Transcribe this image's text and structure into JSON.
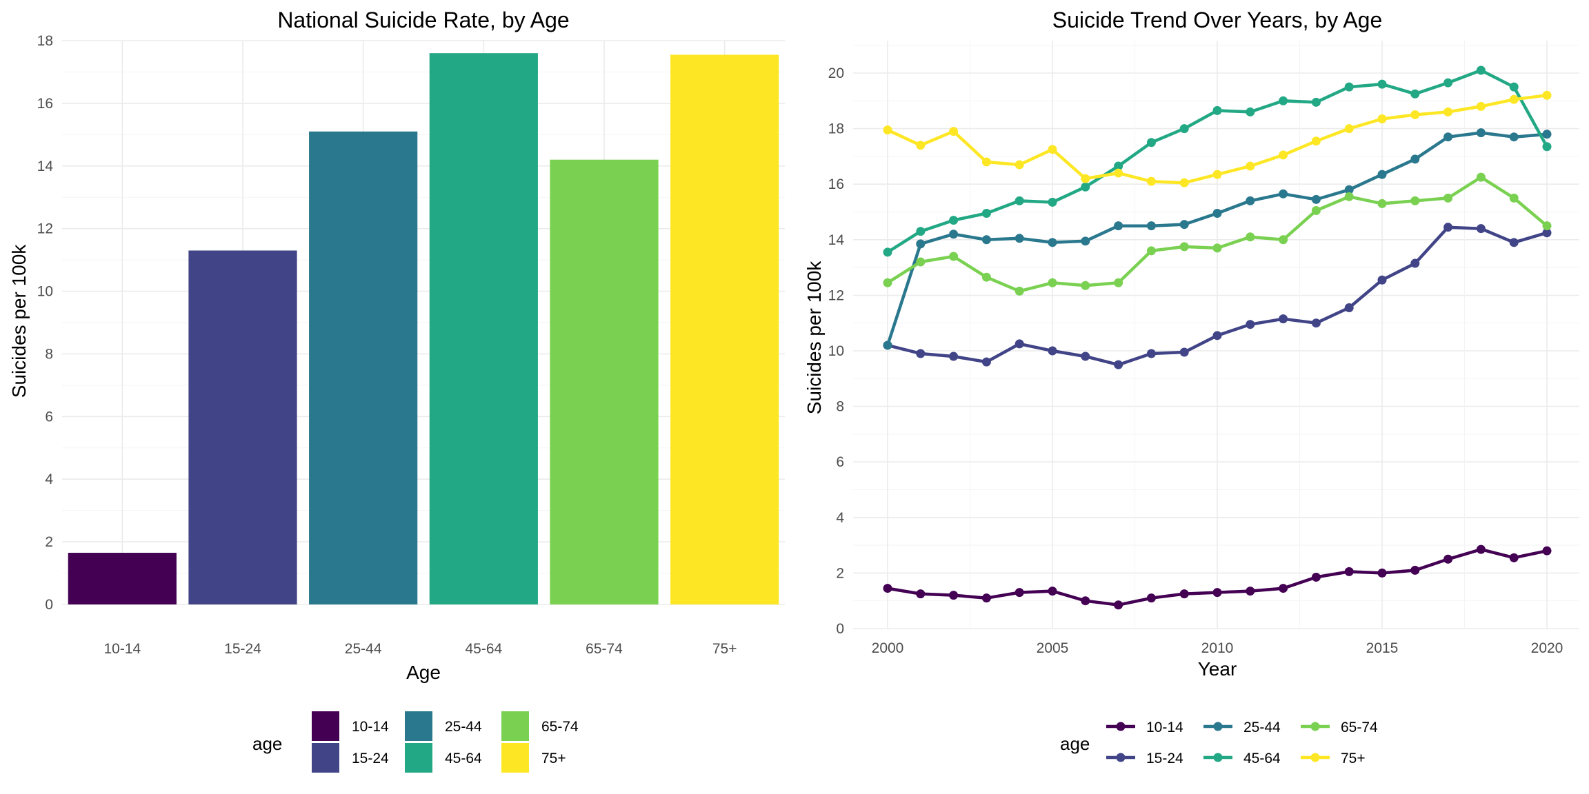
{
  "chart_data": [
    {
      "type": "bar",
      "title": "National Suicide Rate, by Age",
      "xlabel": "Age",
      "ylabel": "Suicides per 100k",
      "categories": [
        "10-14",
        "15-24",
        "25-44",
        "45-64",
        "65-74",
        "75+"
      ],
      "values": [
        1.65,
        11.3,
        15.1,
        17.6,
        14.2,
        17.55
      ],
      "colors": [
        "#440154",
        "#414487",
        "#2a788e",
        "#22a884",
        "#7ad151",
        "#fde725"
      ],
      "ylim": [
        0,
        18
      ],
      "y_ticks": [
        0,
        2,
        4,
        6,
        8,
        10,
        12,
        14,
        16,
        18
      ],
      "grid": true,
      "legend": {
        "title": "age",
        "position": "bottom",
        "entries": [
          "10-14",
          "15-24",
          "25-44",
          "45-64",
          "65-74",
          "75+"
        ]
      }
    },
    {
      "type": "line",
      "title": "Suicide Trend Over Years, by Age",
      "xlabel": "Year",
      "ylabel": "Suicides per 100k",
      "x": [
        2000,
        2001,
        2002,
        2003,
        2004,
        2005,
        2006,
        2007,
        2008,
        2009,
        2010,
        2011,
        2012,
        2013,
        2014,
        2015,
        2016,
        2017,
        2018,
        2019,
        2020
      ],
      "xlim": [
        2000,
        2020
      ],
      "ylim": [
        0,
        20
      ],
      "x_ticks": [
        2000,
        2005,
        2010,
        2015,
        2020
      ],
      "y_ticks": [
        0,
        2,
        4,
        6,
        8,
        10,
        12,
        14,
        16,
        18,
        20
      ],
      "grid": true,
      "series": [
        {
          "name": "10-14",
          "color": "#440154",
          "values": [
            1.45,
            1.25,
            1.2,
            1.1,
            1.3,
            1.35,
            1.0,
            0.85,
            1.1,
            1.25,
            1.3,
            1.35,
            1.45,
            1.85,
            2.05,
            2.0,
            2.1,
            2.5,
            2.85,
            2.55,
            2.8
          ]
        },
        {
          "name": "15-24",
          "color": "#414487",
          "values": [
            10.2,
            9.9,
            9.8,
            9.6,
            10.25,
            10.0,
            9.8,
            9.5,
            9.9,
            9.95,
            10.55,
            10.95,
            11.15,
            11.0,
            11.55,
            12.55,
            13.15,
            14.45,
            14.4,
            13.9,
            14.25
          ]
        },
        {
          "name": "25-44",
          "color": "#2a788e",
          "values": [
            10.2,
            13.85,
            14.2,
            14.0,
            14.05,
            13.9,
            13.95,
            14.5,
            14.5,
            14.55,
            14.95,
            15.4,
            15.65,
            15.45,
            15.8,
            16.35,
            16.9,
            17.7,
            17.85,
            17.7,
            17.8
          ]
        },
        {
          "name": "45-64",
          "color": "#22a884",
          "values": [
            13.55,
            14.3,
            14.7,
            14.95,
            15.4,
            15.35,
            15.9,
            16.65,
            17.5,
            18.0,
            18.65,
            18.6,
            19.0,
            18.95,
            19.5,
            19.6,
            19.25,
            19.65,
            20.1,
            19.5,
            17.35
          ]
        },
        {
          "name": "65-74",
          "color": "#7ad151",
          "values": [
            12.45,
            13.2,
            13.4,
            12.65,
            12.15,
            12.45,
            12.35,
            12.45,
            13.6,
            13.75,
            13.7,
            14.1,
            14.0,
            15.05,
            15.55,
            15.3,
            15.4,
            15.5,
            16.25,
            15.5,
            14.5
          ]
        },
        {
          "name": "75+",
          "color": "#fde725",
          "values": [
            17.95,
            17.4,
            17.9,
            16.8,
            16.7,
            17.25,
            16.2,
            16.4,
            16.1,
            16.05,
            16.35,
            16.65,
            17.05,
            17.55,
            18.0,
            18.35,
            18.5,
            18.6,
            18.8,
            19.05,
            19.2
          ]
        }
      ],
      "legend": {
        "title": "age",
        "position": "bottom",
        "entries": [
          "10-14",
          "15-24",
          "25-44",
          "45-64",
          "65-74",
          "75+"
        ]
      }
    }
  ]
}
